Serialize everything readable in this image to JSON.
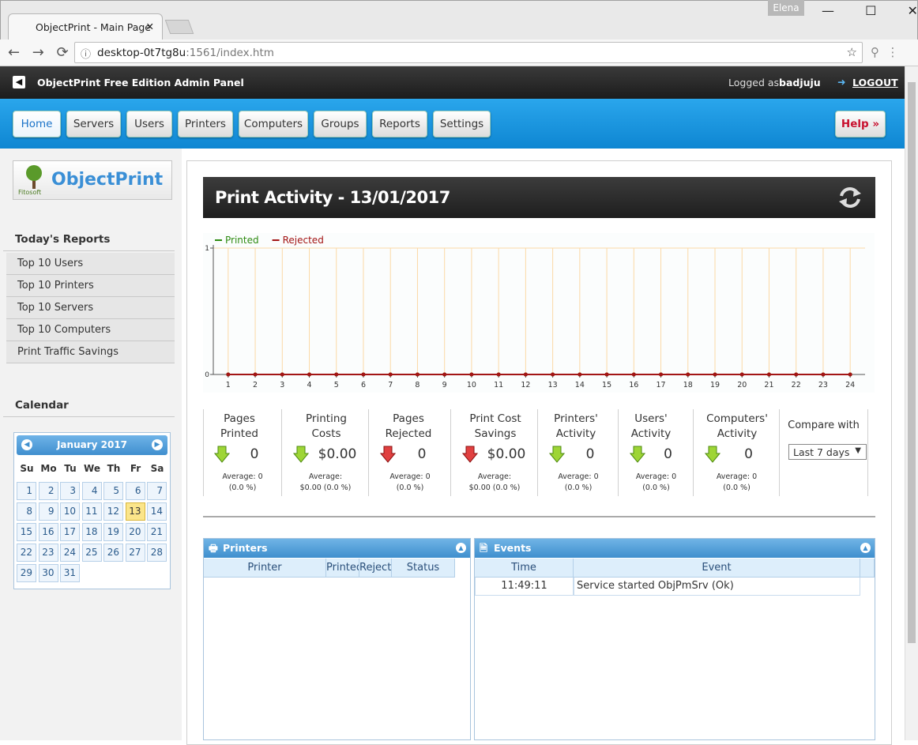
{
  "browser": {
    "tab_title": "ObjectPrint - Main Page",
    "user": "Elena",
    "url_host": "desktop-0t7tg8u",
    "url_rest": ":1561/index.htm"
  },
  "header": {
    "title": "ObjectPrint Free Edition Admin Panel",
    "logged_as": "Logged as:",
    "user": "badjuju",
    "logout": "LOGOUT"
  },
  "nav": {
    "items": [
      "Home",
      "Servers",
      "Users",
      "Printers",
      "Computers",
      "Groups",
      "Reports",
      "Settings"
    ],
    "help": "Help »"
  },
  "sidebar": {
    "logo": "ObjectPrint",
    "logo_small": "Fitosoft",
    "reports_title": "Today's Reports",
    "reports": [
      "Top 10 Users",
      "Top 10 Printers",
      "Top 10 Servers",
      "Top 10 Computers",
      "Print Traffic Savings"
    ],
    "calendar_title": "Calendar",
    "calendar": {
      "month": "January 2017",
      "weekdays": [
        "Su",
        "Mo",
        "Tu",
        "We",
        "Th",
        "Fr",
        "Sa"
      ],
      "weeks": [
        [
          1,
          2,
          3,
          4,
          5,
          6,
          7
        ],
        [
          8,
          9,
          10,
          11,
          12,
          13,
          14
        ],
        [
          15,
          16,
          17,
          18,
          19,
          20,
          21
        ],
        [
          22,
          23,
          24,
          25,
          26,
          27,
          28
        ],
        [
          29,
          30,
          31
        ]
      ],
      "today": 13
    }
  },
  "main": {
    "title": "Print Activity - 13/01/2017",
    "stats": [
      {
        "label": [
          "Pages",
          "Printed"
        ],
        "value": "0",
        "trend": "good",
        "average": [
          "Average: 0",
          "(0.0 %)"
        ]
      },
      {
        "label": [
          "Printing",
          "Costs"
        ],
        "value": "$0.00",
        "trend": "good",
        "average": [
          "Average:",
          "$0.00 (0.0 %)"
        ]
      },
      {
        "label": [
          "Pages",
          "Rejected"
        ],
        "value": "0",
        "trend": "bad",
        "average": [
          "Average: 0",
          "(0.0 %)"
        ]
      },
      {
        "label": [
          "Print Cost",
          "Savings"
        ],
        "value": "$0.00",
        "trend": "bad",
        "average": [
          "Average:",
          "$0.00 (0.0 %)"
        ]
      },
      {
        "label": [
          "Printers'",
          "Activity"
        ],
        "value": "0",
        "trend": "good",
        "average": [
          "Average: 0",
          "(0.0 %)"
        ]
      },
      {
        "label": [
          "Users'",
          "Activity"
        ],
        "value": "0",
        "trend": "good",
        "average": [
          "Average: 0",
          "(0.0 %)"
        ]
      },
      {
        "label": [
          "Computers'",
          "Activity"
        ],
        "value": "0",
        "trend": "good",
        "average": [
          "Average: 0",
          "(0.0 %)"
        ]
      }
    ],
    "compare_label": "Compare with",
    "compare_value": "Last 7 days",
    "printers_panel": {
      "title": "Printers",
      "columns": [
        "Printer",
        "Printed",
        "Rejected",
        "Status"
      ]
    },
    "events_panel": {
      "title": "Events",
      "columns": [
        "Time",
        "Event"
      ],
      "rows": [
        [
          "11:49:11",
          "Service started ObjPmSrv (Ok)"
        ]
      ]
    }
  },
  "chart_data": {
    "type": "line",
    "x": [
      1,
      2,
      3,
      4,
      5,
      6,
      7,
      8,
      9,
      10,
      11,
      12,
      13,
      14,
      15,
      16,
      17,
      18,
      19,
      20,
      21,
      22,
      23,
      24
    ],
    "series": [
      {
        "name": "Printed",
        "color": "#2e8b12",
        "values": [
          0,
          0,
          0,
          0,
          0,
          0,
          0,
          0,
          0,
          0,
          0,
          0,
          0,
          0,
          0,
          0,
          0,
          0,
          0,
          0,
          0,
          0,
          0,
          0
        ]
      },
      {
        "name": "Rejected",
        "color": "#a31515",
        "values": [
          0,
          0,
          0,
          0,
          0,
          0,
          0,
          0,
          0,
          0,
          0,
          0,
          0,
          0,
          0,
          0,
          0,
          0,
          0,
          0,
          0,
          0,
          0,
          0
        ]
      }
    ],
    "xlim": [
      0.45,
      24.55
    ],
    "xticks": [
      1,
      2,
      3,
      4,
      5,
      6,
      7,
      8,
      9,
      10,
      11,
      12,
      13,
      14,
      15,
      16,
      17,
      18,
      19,
      20,
      21,
      22,
      23,
      24
    ],
    "ylim": [
      0,
      1
    ],
    "yticks": [
      0,
      1
    ],
    "grid": true,
    "grid_color": "#fbd9a6",
    "legend": "top-left"
  }
}
